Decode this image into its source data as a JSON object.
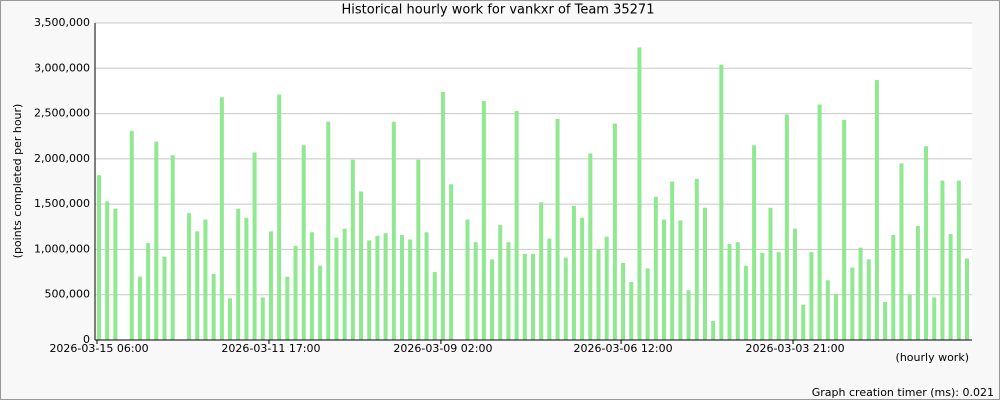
{
  "chart_data": {
    "type": "bar",
    "title": "Historical hourly work for vankxr of Team 35271",
    "y_label": "(points completed per hour)",
    "x_label": "(hourly work)",
    "footer": "Graph creation timer (ms): 0.021",
    "color": "#90e890",
    "grid": true,
    "ylim": [
      0,
      3500000
    ],
    "yticks": [
      {
        "value": 0,
        "label": "0"
      },
      {
        "value": 500000,
        "label": "500,000"
      },
      {
        "value": 1000000,
        "label": "1,000,000"
      },
      {
        "value": 1500000,
        "label": "1,500,000"
      },
      {
        "value": 2000000,
        "label": "2,000,000"
      },
      {
        "value": 2500000,
        "label": "2,500,000"
      },
      {
        "value": 3000000,
        "label": "3,000,000"
      },
      {
        "value": 3500000,
        "label": "3,500,000"
      }
    ],
    "categories": [
      "2026-03-15 06:00",
      null,
      null,
      null,
      null,
      null,
      null,
      null,
      null,
      null,
      null,
      null,
      null,
      null,
      null,
      null,
      null,
      null,
      null,
      null,
      null,
      "2026-03-11 17:00",
      null,
      null,
      null,
      null,
      null,
      null,
      null,
      null,
      null,
      null,
      null,
      null,
      null,
      null,
      null,
      null,
      null,
      null,
      null,
      null,
      "2026-03-09 02:00",
      null,
      null,
      null,
      null,
      null,
      null,
      null,
      null,
      null,
      null,
      null,
      null,
      null,
      null,
      null,
      null,
      null,
      null,
      null,
      null,
      null,
      "2026-03-06 12:00",
      null,
      null,
      null,
      null,
      null,
      null,
      null,
      null,
      null,
      null,
      null,
      null,
      null,
      null,
      null,
      null,
      null,
      null,
      null,
      null,
      "2026-03-03 21:00",
      null,
      null,
      null,
      null,
      null,
      null,
      null,
      null,
      null,
      null,
      null,
      null,
      null,
      null,
      null,
      null,
      null,
      null,
      null,
      null,
      null
    ],
    "values": [
      1820000,
      1530000,
      1450000,
      null,
      2310000,
      700000,
      1070000,
      2190000,
      920000,
      2040000,
      null,
      1400000,
      1200000,
      1330000,
      730000,
      2680000,
      460000,
      1450000,
      1350000,
      2070000,
      470000,
      1200000,
      2710000,
      700000,
      1040000,
      2150000,
      1190000,
      820000,
      2410000,
      1130000,
      1230000,
      1990000,
      1640000,
      1100000,
      1150000,
      1180000,
      2410000,
      1160000,
      1110000,
      1990000,
      1190000,
      750000,
      2740000,
      1720000,
      null,
      1330000,
      1080000,
      2640000,
      890000,
      1270000,
      1080000,
      2530000,
      950000,
      950000,
      1520000,
      1120000,
      2440000,
      910000,
      1480000,
      1350000,
      2060000,
      1000000,
      1140000,
      2390000,
      850000,
      640000,
      3230000,
      790000,
      1580000,
      1330000,
      1750000,
      1320000,
      550000,
      1780000,
      1460000,
      210000,
      3040000,
      1060000,
      1080000,
      820000,
      2150000,
      960000,
      1460000,
      970000,
      2490000,
      1230000,
      390000,
      970000,
      2600000,
      660000,
      510000,
      2430000,
      800000,
      1020000,
      890000,
      2870000,
      420000,
      1160000,
      1950000,
      500000,
      1260000,
      2140000,
      470000,
      1760000,
      1170000,
      1760000,
      900000
    ]
  }
}
